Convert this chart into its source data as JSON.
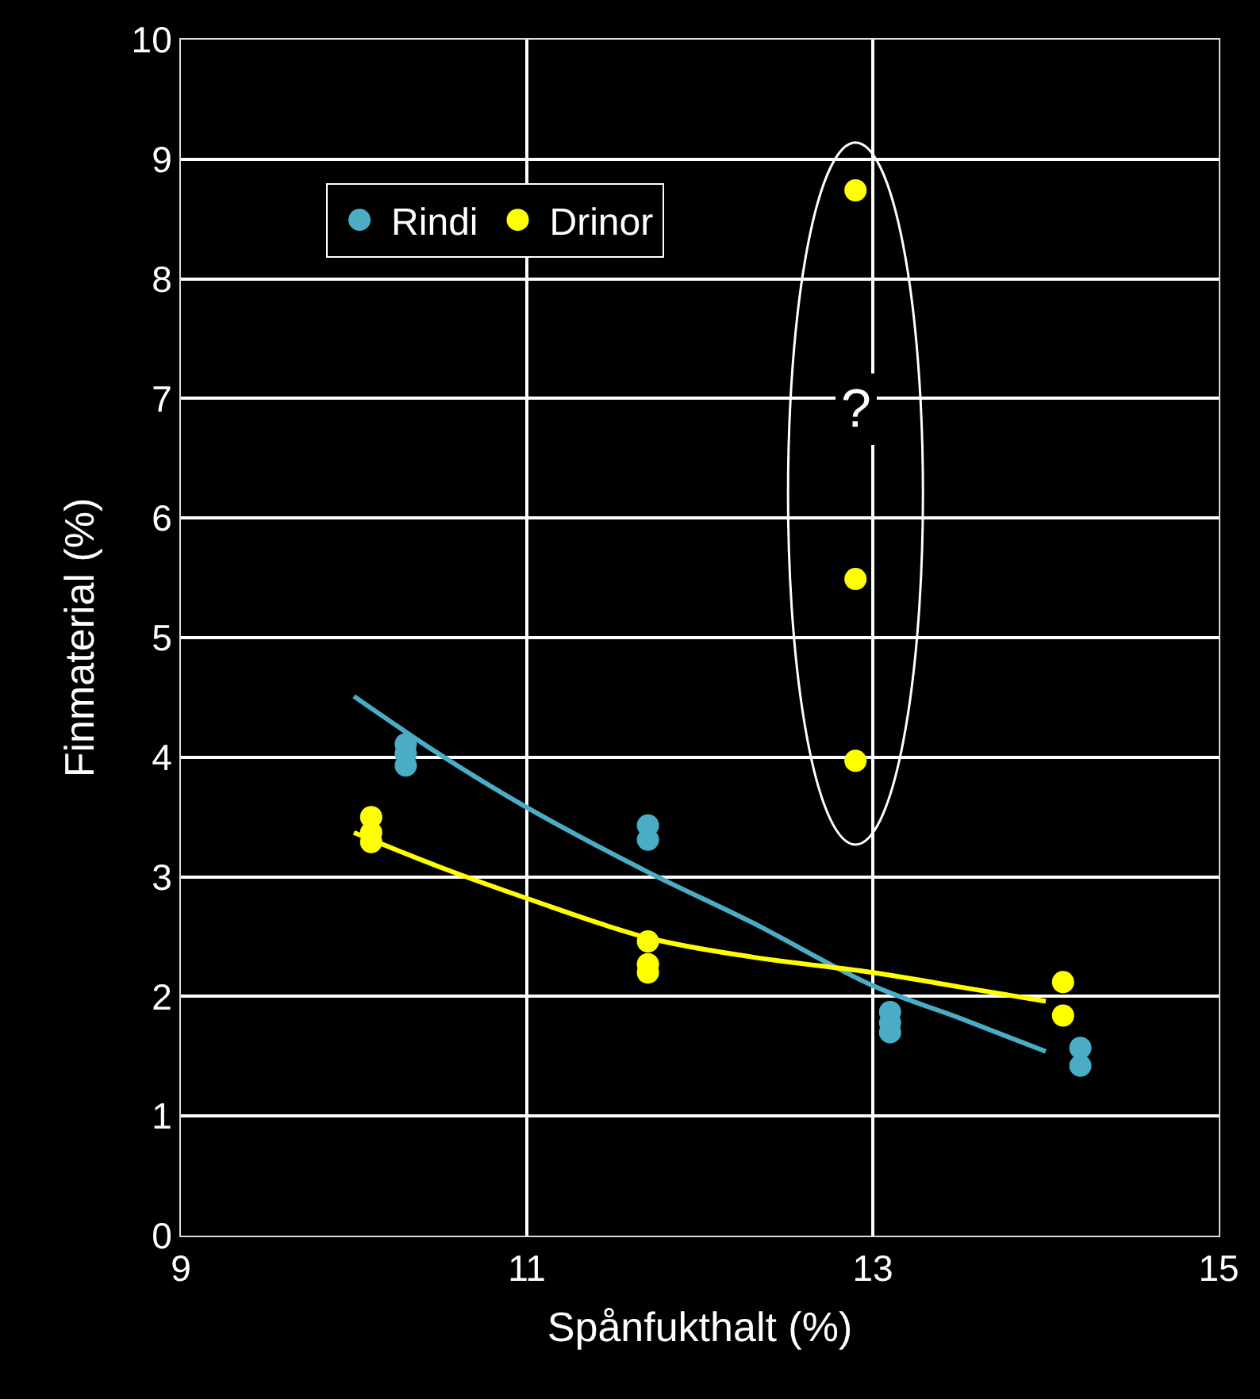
{
  "chart_data": {
    "type": "scatter",
    "xlabel": "Spånfukthalt (%)",
    "ylabel": "Finmaterial (%)",
    "xlim": [
      9,
      15
    ],
    "xticks": [
      9,
      11,
      13,
      15
    ],
    "ylim": [
      0,
      10
    ],
    "yticks": [
      0,
      1,
      2,
      3,
      4,
      5,
      6,
      7,
      8,
      9,
      10
    ],
    "grid": true,
    "legend": "top left",
    "marker": "circle",
    "annotations": [
      "?"
    ],
    "series": [
      {
        "name": "Rindi",
        "color": "#4bacc6",
        "x": [
          10.3,
          10.3,
          10.3,
          11.7,
          11.7,
          13.1,
          13.1,
          13.1,
          14.2,
          14.2
        ],
        "values": [
          4.11,
          4.03,
          3.93,
          3.43,
          3.31,
          1.87,
          1.78,
          1.7,
          1.57,
          1.42
        ]
      },
      {
        "name": "Drinor",
        "color": "#ffff00",
        "x": [
          10.1,
          10.1,
          10.1,
          11.7,
          11.7,
          11.7,
          12.9,
          12.9,
          12.9,
          14.1,
          14.1
        ],
        "values": [
          3.5,
          3.37,
          3.29,
          2.46,
          2.27,
          2.2,
          8.74,
          5.49,
          3.97,
          2.12,
          1.84
        ]
      },
      {
        "type": "line",
        "marker": "none",
        "color": "#4bacc6",
        "x": [
          10,
          10.5,
          11,
          11.7,
          12.3,
          13,
          13.5,
          14
        ],
        "values": [
          4.51,
          4.02,
          3.58,
          3.04,
          2.62,
          2.09,
          1.82,
          1.54
        ]
      },
      {
        "type": "line",
        "marker": "none",
        "color": "#ffff00",
        "x": [
          10,
          10.5,
          11,
          11.7,
          12.3,
          13,
          13.5,
          14
        ],
        "values": [
          3.37,
          3.08,
          2.82,
          2.49,
          2.33,
          2.2,
          2.08,
          1.96
        ]
      }
    ]
  }
}
